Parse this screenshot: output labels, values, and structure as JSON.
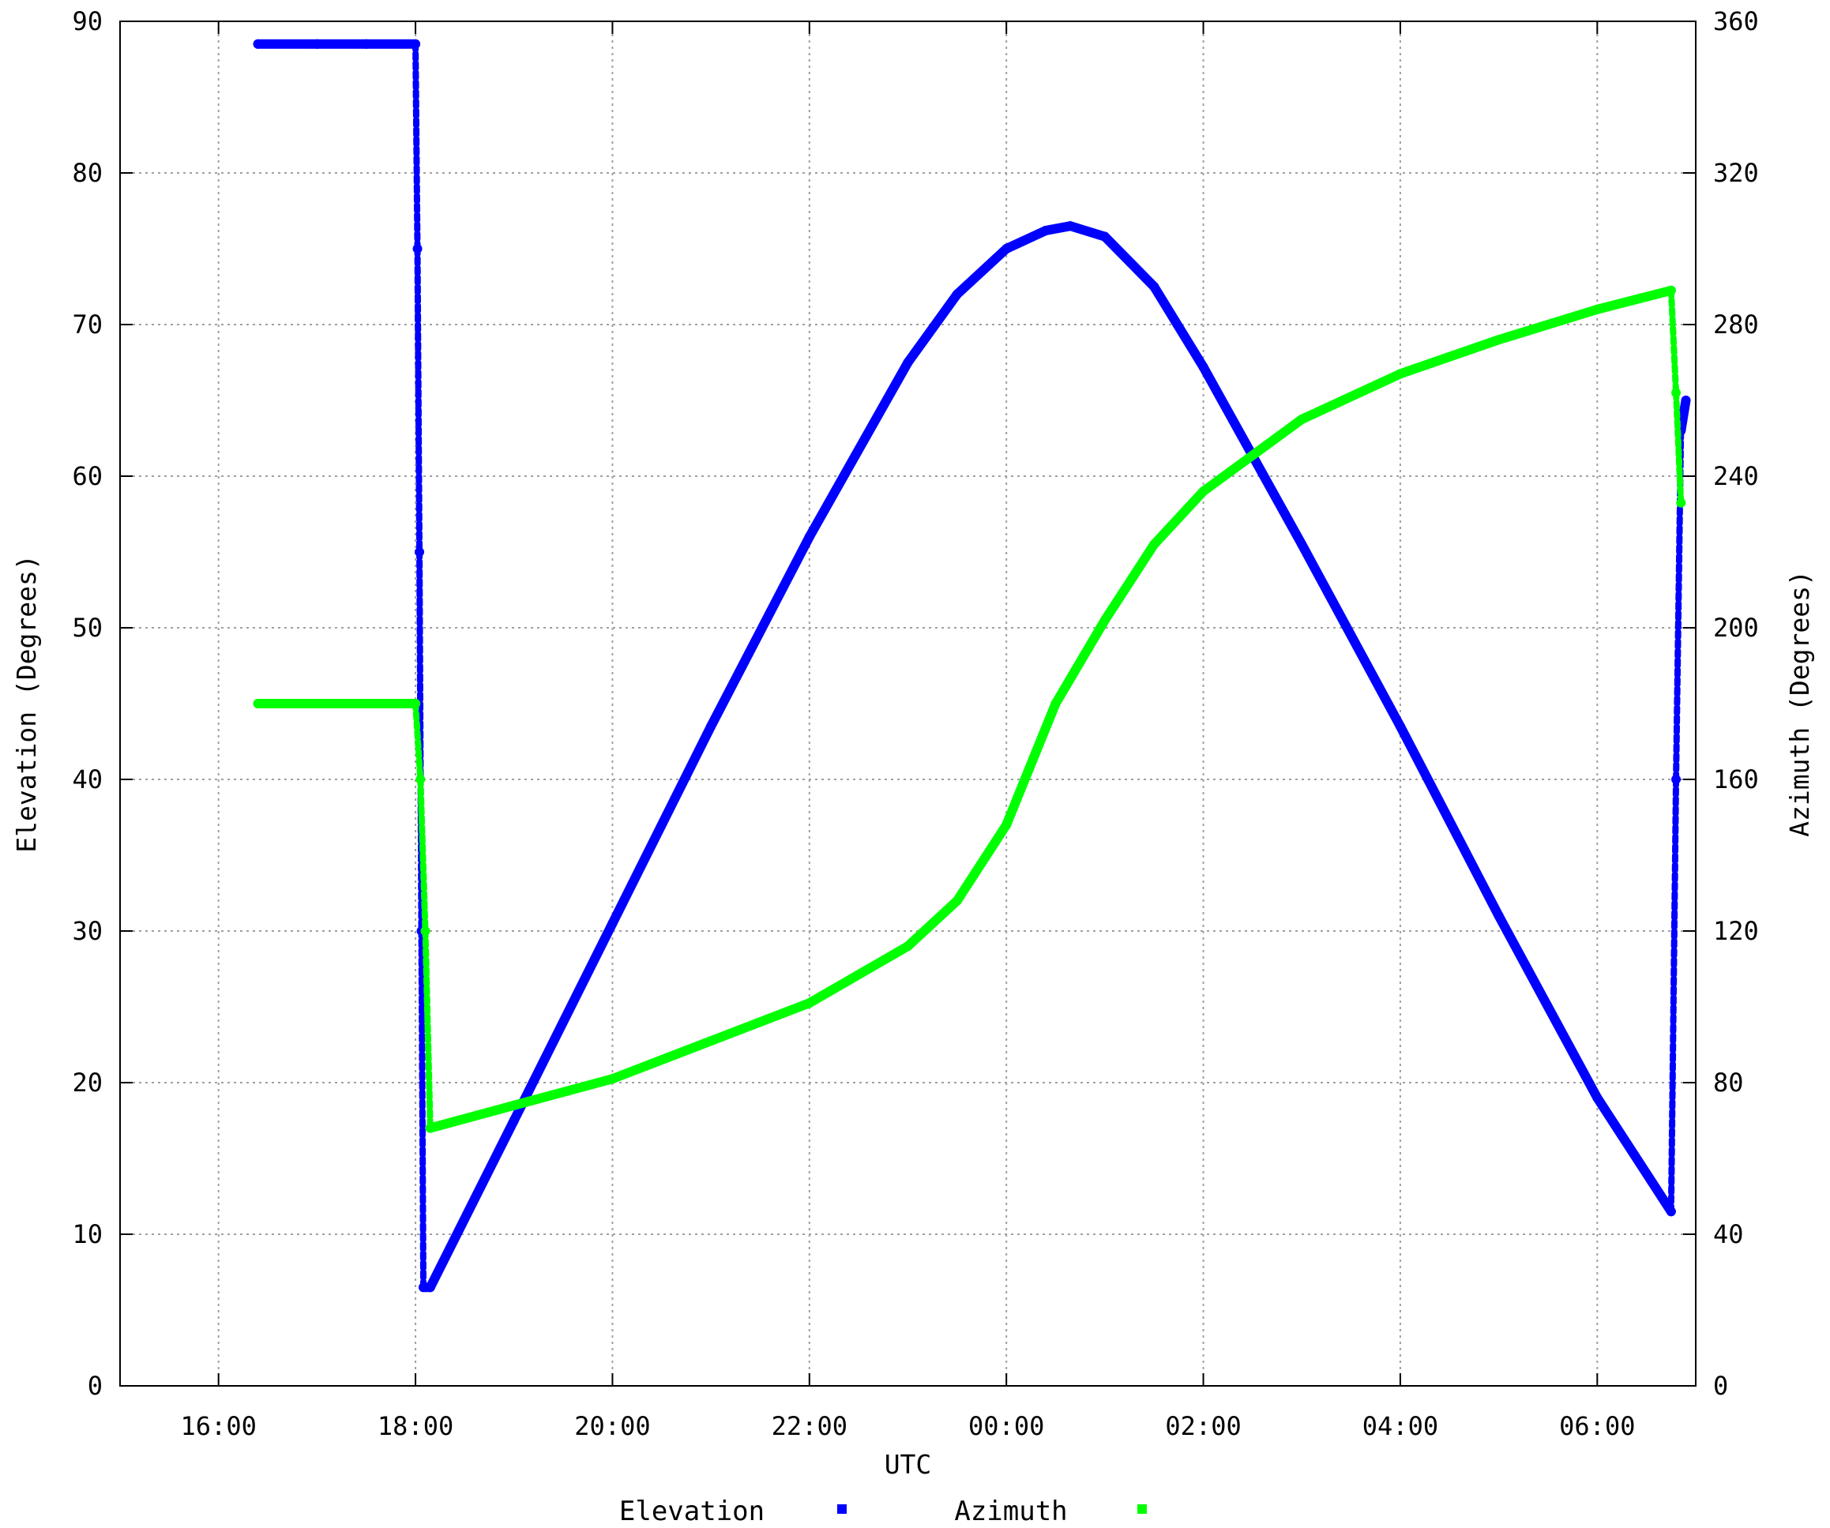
{
  "chart_data": {
    "type": "scatter",
    "xlabel": "UTC",
    "ylabel": "Elevation (Degrees)",
    "y2label": "Azimuth (Degrees)",
    "xlim": [
      15.0,
      31.0
    ],
    "ylim": [
      0,
      90
    ],
    "y2lim": [
      0,
      360
    ],
    "xticks": [
      {
        "value": 16,
        "label": "16:00"
      },
      {
        "value": 18,
        "label": "18:00"
      },
      {
        "value": 20,
        "label": "20:00"
      },
      {
        "value": 22,
        "label": "22:00"
      },
      {
        "value": 24,
        "label": "00:00"
      },
      {
        "value": 26,
        "label": "02:00"
      },
      {
        "value": 28,
        "label": "04:00"
      },
      {
        "value": 30,
        "label": "06:00"
      }
    ],
    "yticks": [
      "0",
      "10",
      "20",
      "30",
      "40",
      "50",
      "60",
      "70",
      "80",
      "90"
    ],
    "y2ticks": [
      "0",
      "40",
      "80",
      "120",
      "160",
      "200",
      "240",
      "280",
      "320",
      "360"
    ],
    "grid": true,
    "legend_position": "bottom",
    "series": [
      {
        "name": "Elevation",
        "axis": "left",
        "color": "#0000ff",
        "points": [
          [
            16.4,
            88.5
          ],
          [
            17.0,
            88.5
          ],
          [
            17.5,
            88.5
          ],
          [
            18.0,
            88.5
          ],
          [
            18.02,
            75
          ],
          [
            18.04,
            55
          ],
          [
            18.06,
            30
          ],
          [
            18.08,
            6.5
          ],
          [
            18.15,
            6.5
          ],
          [
            19.0,
            17.5
          ],
          [
            20.0,
            30.5
          ],
          [
            21.0,
            43.5
          ],
          [
            22.0,
            56
          ],
          [
            23.0,
            67.5
          ],
          [
            23.5,
            72
          ],
          [
            24.0,
            75
          ],
          [
            24.4,
            76.2
          ],
          [
            24.65,
            76.5
          ],
          [
            25.0,
            75.8
          ],
          [
            25.5,
            72.5
          ],
          [
            26.0,
            67.2
          ],
          [
            27.0,
            55.5
          ],
          [
            28.0,
            43.5
          ],
          [
            29.0,
            31
          ],
          [
            30.0,
            19
          ],
          [
            30.75,
            11.5
          ],
          [
            30.8,
            40
          ],
          [
            30.85,
            63
          ],
          [
            30.9,
            65
          ]
        ]
      },
      {
        "name": "Azimuth",
        "axis": "right",
        "color": "#00ff00",
        "points": [
          [
            16.4,
            180
          ],
          [
            17.0,
            180
          ],
          [
            17.5,
            180
          ],
          [
            18.0,
            180
          ],
          [
            18.05,
            160
          ],
          [
            18.1,
            120
          ],
          [
            18.15,
            68
          ],
          [
            19.0,
            74
          ],
          [
            20.0,
            81
          ],
          [
            21.0,
            91
          ],
          [
            22.0,
            101
          ],
          [
            23.0,
            116
          ],
          [
            23.5,
            128
          ],
          [
            24.0,
            148
          ],
          [
            24.5,
            180
          ],
          [
            25.0,
            202
          ],
          [
            25.5,
            222
          ],
          [
            26.0,
            236
          ],
          [
            27.0,
            255
          ],
          [
            28.0,
            267
          ],
          [
            29.0,
            276
          ],
          [
            30.0,
            284
          ],
          [
            30.75,
            289
          ],
          [
            30.8,
            262
          ],
          [
            30.85,
            233
          ]
        ]
      }
    ]
  }
}
